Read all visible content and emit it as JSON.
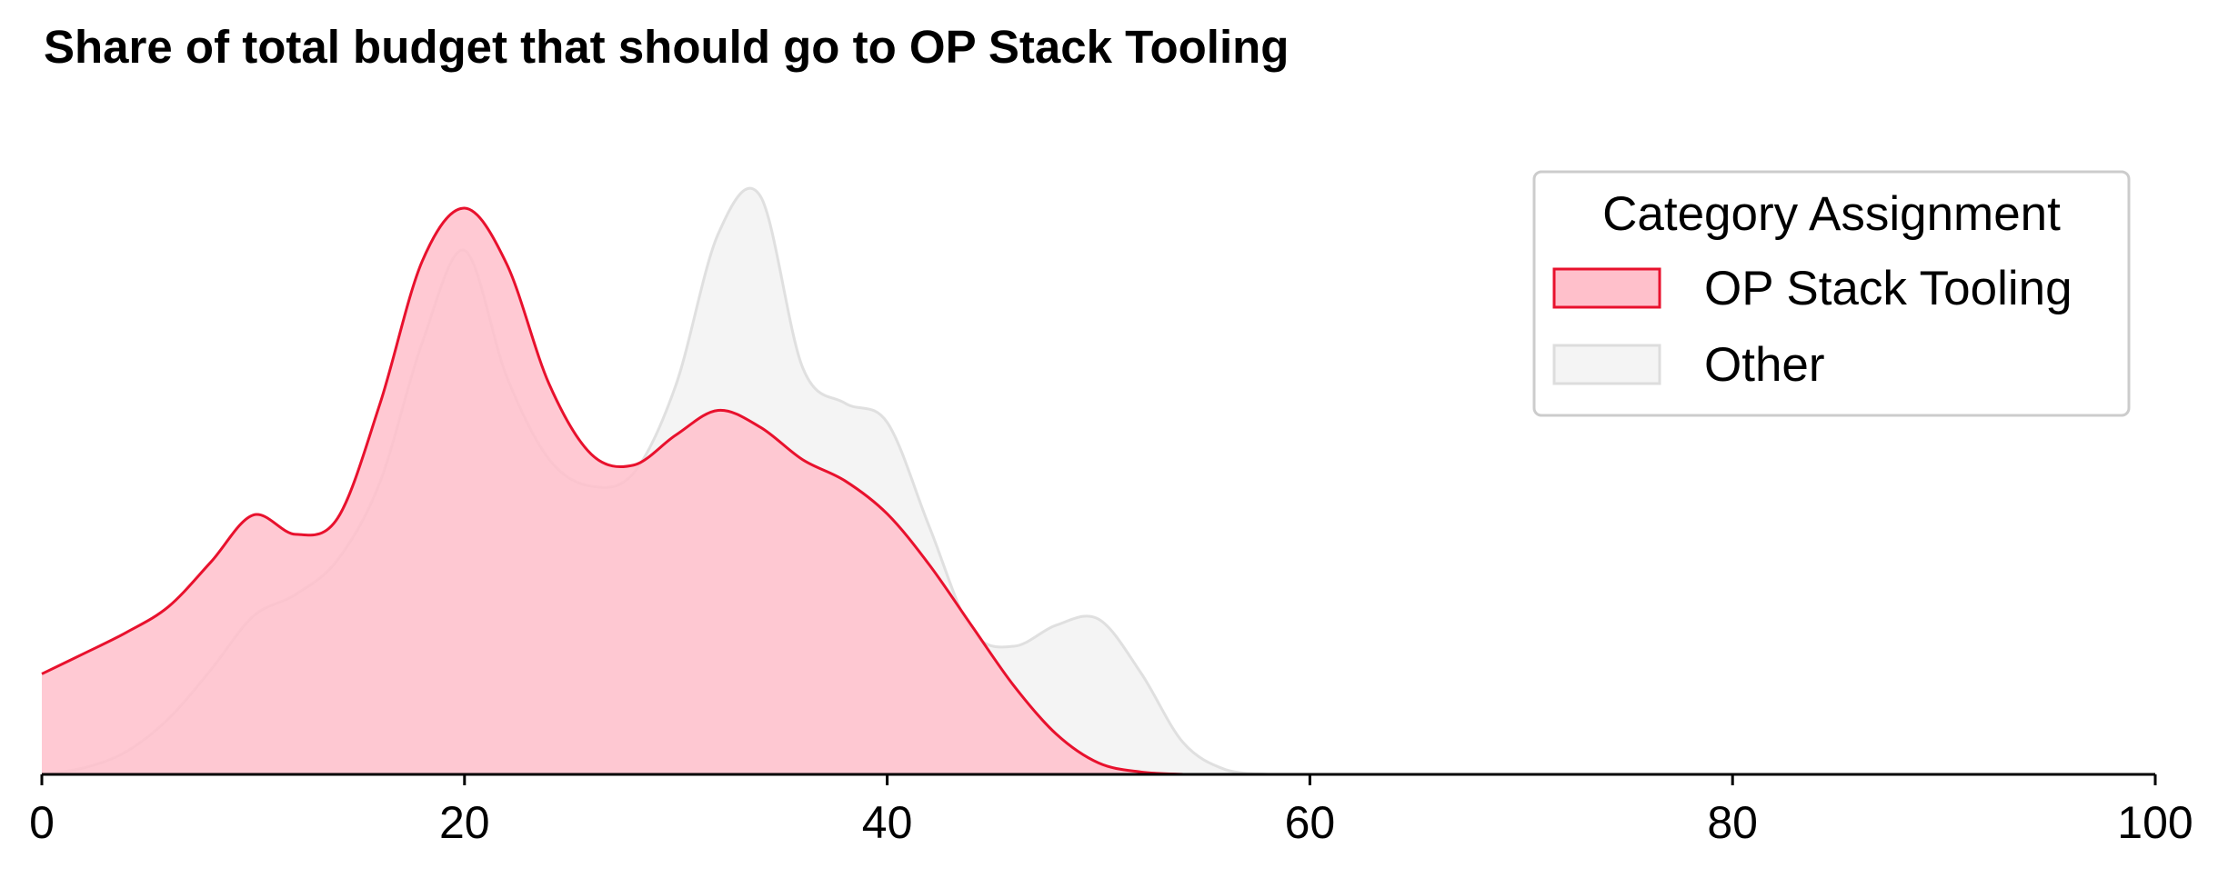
{
  "chart_data": {
    "type": "area",
    "title": "Share of total budget that should go to OP Stack Tooling",
    "xlabel": "",
    "ylabel": "",
    "xlim": [
      0,
      100
    ],
    "xticks": [
      0,
      20,
      40,
      60,
      80,
      100
    ],
    "grid": false,
    "legend": {
      "title": "Category Assignment",
      "placement": "top-right",
      "entries": [
        "OP Stack Tooling",
        "Other"
      ]
    },
    "series": [
      {
        "name": "OP Stack Tooling",
        "color": "#e8112d",
        "fill": "#ffc0cb",
        "x": [
          0,
          2,
          4,
          6,
          8,
          10,
          12,
          14,
          16,
          18,
          20,
          22,
          24,
          26,
          28,
          30,
          32,
          34,
          36,
          38,
          40,
          42,
          44,
          46,
          48,
          50,
          52,
          54
        ],
        "density": [
          0.167,
          0.201,
          0.236,
          0.279,
          0.353,
          0.431,
          0.399,
          0.426,
          0.616,
          0.853,
          0.941,
          0.848,
          0.649,
          0.532,
          0.514,
          0.564,
          0.605,
          0.577,
          0.523,
          0.488,
          0.433,
          0.348,
          0.247,
          0.147,
          0.067,
          0.019,
          0.004,
          0.0
        ]
      },
      {
        "name": "Other",
        "color": "#dddddd",
        "fill": "#f0f0f0",
        "x": [
          0,
          2,
          4,
          6,
          8,
          10,
          12,
          14,
          16,
          18,
          20,
          22,
          24,
          26,
          28,
          30,
          32,
          34,
          36,
          38,
          40,
          42,
          44,
          46,
          48,
          50,
          52,
          54,
          56,
          58
        ],
        "density": [
          0.0,
          0.011,
          0.038,
          0.093,
          0.174,
          0.263,
          0.299,
          0.357,
          0.486,
          0.718,
          0.871,
          0.661,
          0.524,
          0.479,
          0.501,
          0.647,
          0.898,
          0.961,
          0.676,
          0.617,
          0.585,
          0.411,
          0.239,
          0.213,
          0.248,
          0.258,
          0.169,
          0.053,
          0.008,
          0.0
        ]
      }
    ]
  }
}
